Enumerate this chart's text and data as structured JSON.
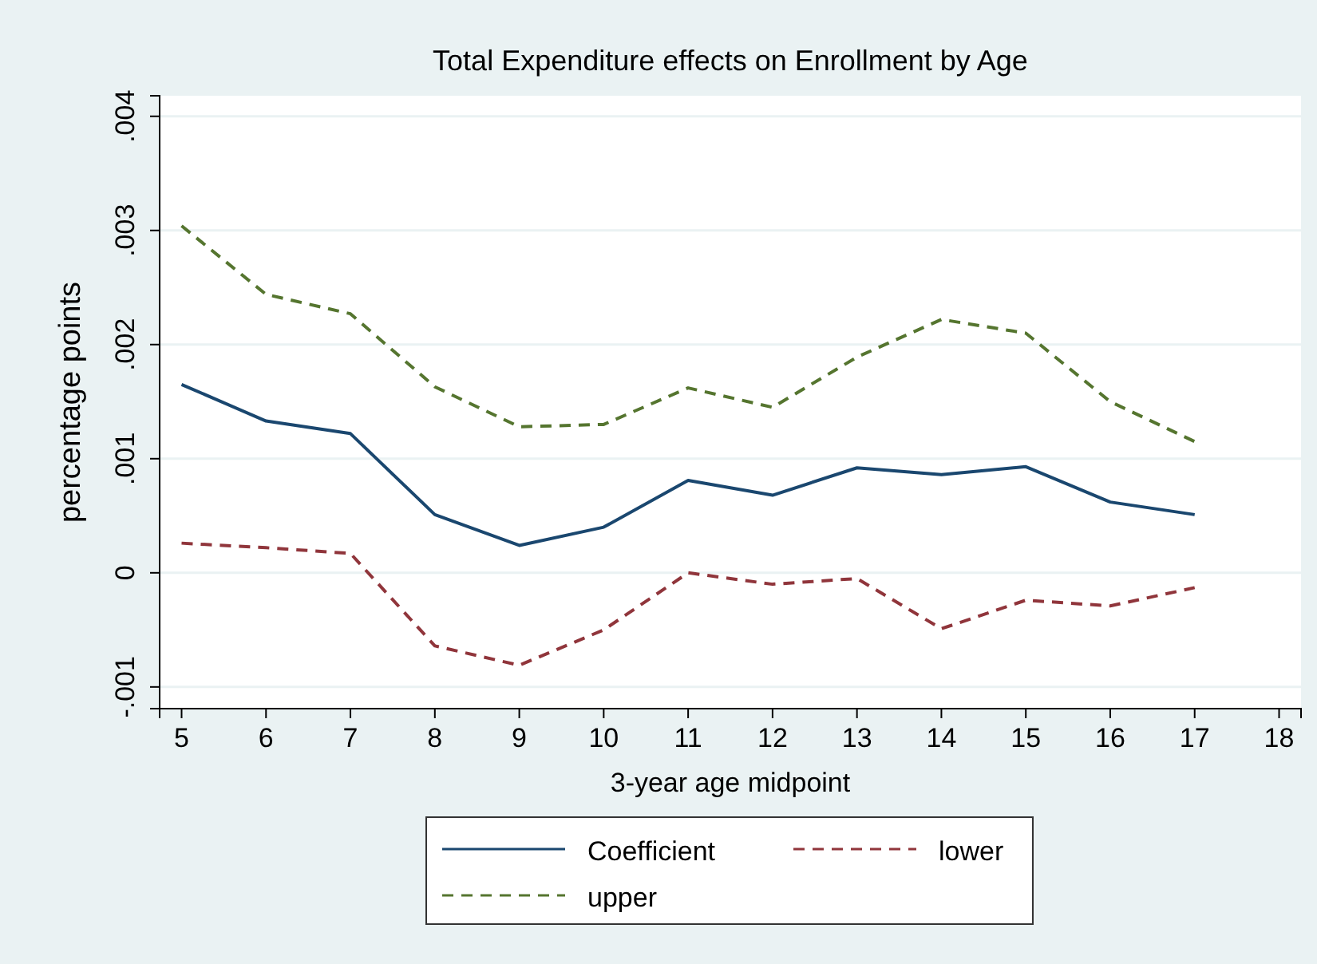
{
  "chart_data": {
    "type": "line",
    "title": "Total Expenditure effects on Enrollment by Age",
    "xlabel": "3-year age midpoint",
    "ylabel": "percentage points",
    "x": [
      5,
      6,
      7,
      8,
      9,
      10,
      11,
      12,
      13,
      14,
      15,
      16,
      17
    ],
    "series": [
      {
        "name": "Coefficient",
        "color": "#1a476f",
        "line_style": "solid",
        "values": [
          0.00165,
          0.00133,
          0.00122,
          0.00051,
          0.00024,
          0.0004,
          0.00081,
          0.00068,
          0.00092,
          0.00086,
          0.00093,
          0.00062,
          0.00051
        ]
      },
      {
        "name": "lower",
        "color": "#90353b",
        "line_style": "dashed",
        "values": [
          0.00026,
          0.00022,
          0.00017,
          -0.00064,
          -0.00081,
          -0.0005,
          0,
          -0.0001,
          -5e-05,
          -0.00049,
          -0.00024,
          -0.00029,
          -0.00013
        ]
      },
      {
        "name": "upper",
        "color": "#55752f",
        "line_style": "dashed",
        "values": [
          0.00304,
          0.00244,
          0.00227,
          0.00163,
          0.00128,
          0.0013,
          0.00162,
          0.00145,
          0.00189,
          0.00222,
          0.0021,
          0.0015,
          0.00115
        ]
      }
    ],
    "xlim": [
      4.74,
      18.26
    ],
    "xticks": [
      5,
      6,
      7,
      8,
      9,
      10,
      11,
      12,
      13,
      14,
      15,
      16,
      17,
      18
    ],
    "ylim": [
      -0.00119,
      0.00418
    ],
    "yticks": [
      {
        "value": -0.001,
        "label": "-.001"
      },
      {
        "value": 0,
        "label": "0"
      },
      {
        "value": 0.001,
        "label": ".001"
      },
      {
        "value": 0.002,
        "label": ".002"
      },
      {
        "value": 0.003,
        "label": ".003"
      },
      {
        "value": 0.004,
        "label": ".004"
      }
    ],
    "grid": "y",
    "legend": "bottom",
    "marker": "none"
  }
}
